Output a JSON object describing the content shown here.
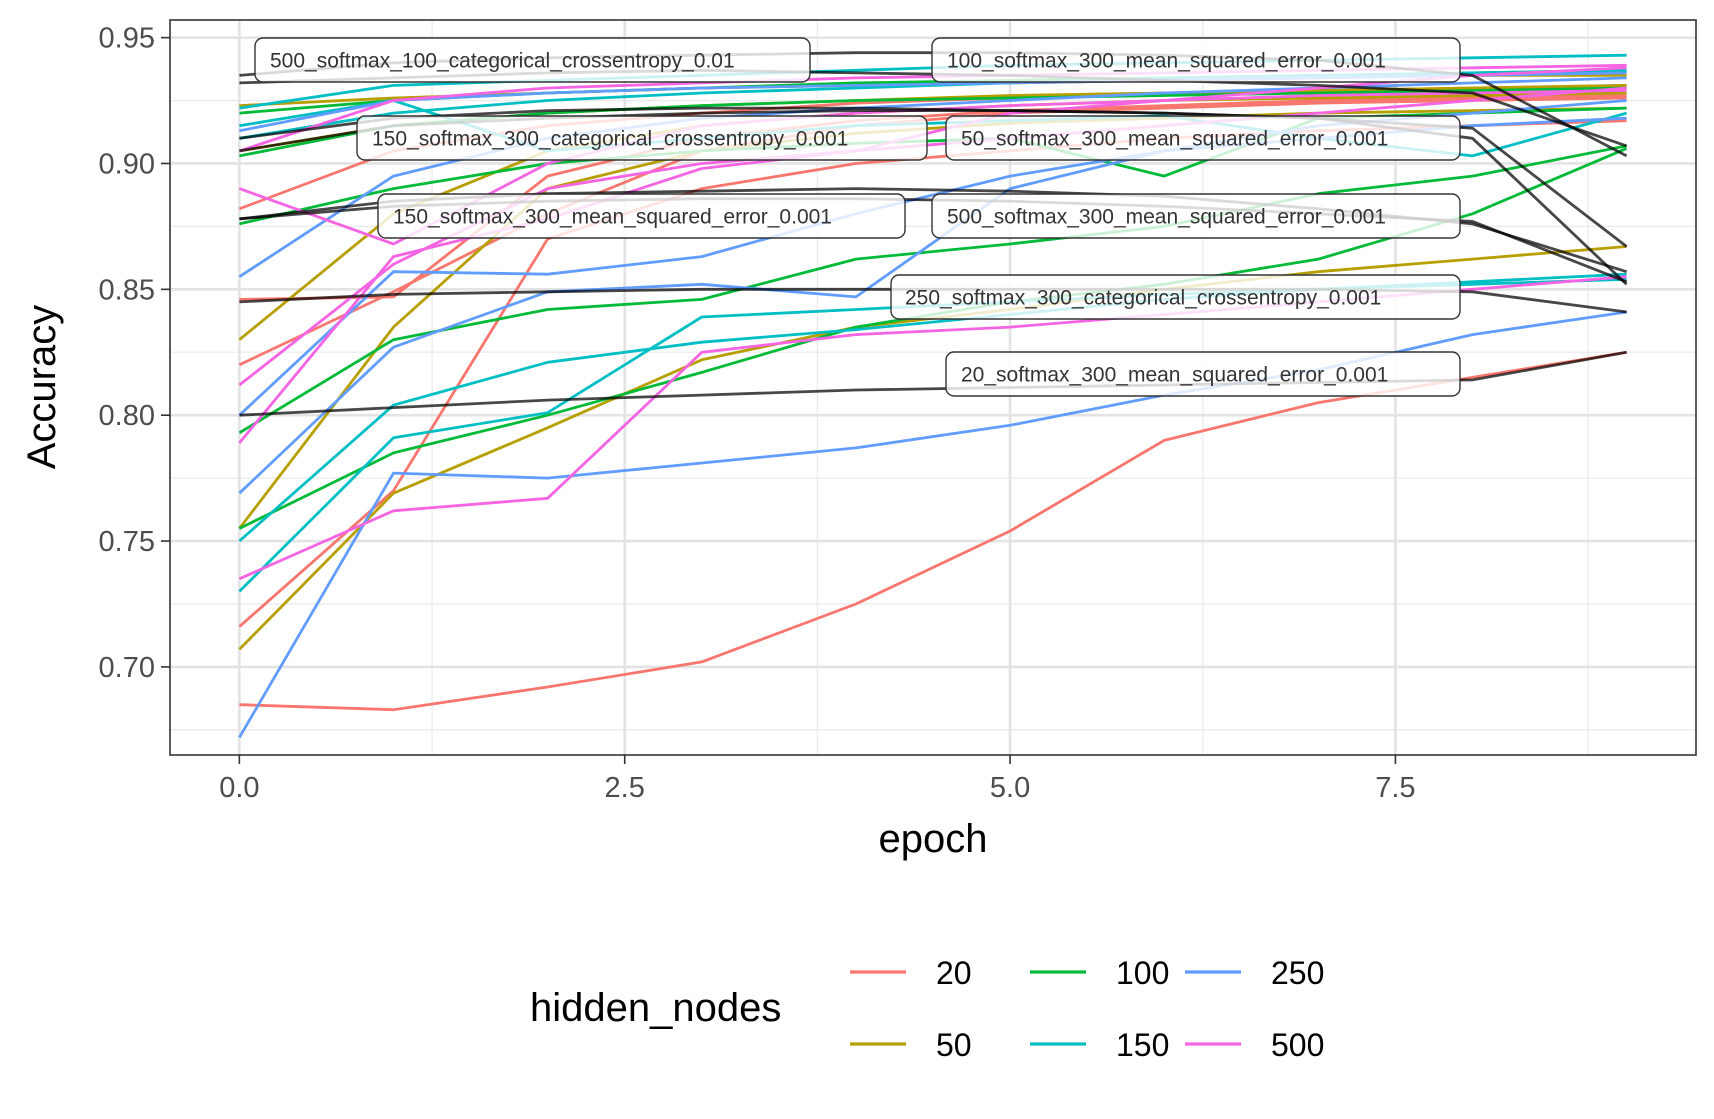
{
  "chart_data": {
    "type": "line",
    "xlabel": "epoch",
    "ylabel": "Accuracy",
    "xlim": [
      -0.45,
      9.45
    ],
    "ylim": [
      0.665,
      0.957
    ],
    "x_ticks": [
      "0.0",
      "2.5",
      "5.0",
      "7.5"
    ],
    "x_tick_values": [
      0,
      2.5,
      5,
      7.5
    ],
    "y_ticks": [
      "0.70",
      "0.75",
      "0.80",
      "0.85",
      "0.90",
      "0.95"
    ],
    "y_tick_values": [
      0.7,
      0.75,
      0.8,
      0.85,
      0.9,
      0.95
    ],
    "grid": true,
    "legend": {
      "title": "hidden_nodes",
      "position": "bottom",
      "entries": [
        {
          "label": "20",
          "color": "#F8766D"
        },
        {
          "label": "50",
          "color": "#B79F00"
        },
        {
          "label": "100",
          "color": "#00BA38"
        },
        {
          "label": "150",
          "color": "#00BFC4"
        },
        {
          "label": "250",
          "color": "#619CFF"
        },
        {
          "label": "500",
          "color": "#F564E3"
        }
      ]
    },
    "x": [
      0,
      1,
      2,
      3,
      4,
      5,
      6,
      7,
      8,
      9
    ],
    "series": [
      {
        "group": "20",
        "color": "#F8766D",
        "values": [
          0.685,
          0.683,
          0.692,
          0.702,
          0.725,
          0.754,
          0.79,
          0.805,
          0.815,
          0.825
        ]
      },
      {
        "group": "20",
        "color": "#F8766D",
        "values": [
          0.716,
          0.77,
          0.87,
          0.89,
          0.9,
          0.905,
          0.91,
          0.913,
          0.915,
          0.917
        ]
      },
      {
        "group": "20",
        "color": "#F8766D",
        "values": [
          0.82,
          0.849,
          0.88,
          0.905,
          0.915,
          0.92,
          0.922,
          0.924,
          0.925,
          0.926
        ]
      },
      {
        "group": "20",
        "color": "#F8766D",
        "values": [
          0.846,
          0.847,
          0.895,
          0.91,
          0.917,
          0.921,
          0.923,
          0.925,
          0.926,
          0.927
        ]
      },
      {
        "group": "20",
        "color": "#F8766D",
        "values": [
          0.882,
          0.905,
          0.915,
          0.92,
          0.924,
          0.926,
          0.928,
          0.929,
          0.93,
          0.931
        ]
      },
      {
        "group": "50",
        "color": "#B79F00",
        "values": [
          0.707,
          0.769,
          0.795,
          0.822,
          0.835,
          0.842,
          0.85,
          0.857,
          0.862,
          0.867
        ]
      },
      {
        "group": "50",
        "color": "#B79F00",
        "values": [
          0.755,
          0.835,
          0.89,
          0.905,
          0.912,
          0.916,
          0.918,
          0.92,
          0.921,
          0.922
        ]
      },
      {
        "group": "50",
        "color": "#B79F00",
        "values": [
          0.83,
          0.88,
          0.905,
          0.915,
          0.92,
          0.923,
          0.925,
          0.926,
          0.927,
          0.928
        ]
      },
      {
        "group": "50",
        "color": "#B79F00",
        "values": [
          0.905,
          0.915,
          0.92,
          0.923,
          0.925,
          0.927,
          0.928,
          0.929,
          0.93,
          0.931
        ]
      },
      {
        "group": "50",
        "color": "#B79F00",
        "values": [
          0.923,
          0.926,
          0.928,
          0.93,
          0.931,
          0.932,
          0.933,
          0.934,
          0.935,
          0.935
        ]
      },
      {
        "group": "100",
        "color": "#00BA38",
        "values": [
          0.793,
          0.83,
          0.842,
          0.846,
          0.862,
          0.868,
          0.875,
          0.888,
          0.895,
          0.907
        ]
      },
      {
        "group": "100",
        "color": "#00BA38",
        "values": [
          0.755,
          0.785,
          0.8,
          0.817,
          0.835,
          0.845,
          0.852,
          0.862,
          0.88,
          0.906
        ]
      },
      {
        "group": "100",
        "color": "#00BA38",
        "values": [
          0.876,
          0.89,
          0.9,
          0.905,
          0.908,
          0.91,
          0.895,
          0.918,
          0.92,
          0.922
        ]
      },
      {
        "group": "100",
        "color": "#00BA38",
        "values": [
          0.903,
          0.915,
          0.92,
          0.923,
          0.925,
          0.926,
          0.927,
          0.928,
          0.929,
          0.93
        ]
      },
      {
        "group": "100",
        "color": "#00BA38",
        "values": [
          0.92,
          0.925,
          0.928,
          0.93,
          0.932,
          0.933,
          0.934,
          0.935,
          0.936,
          0.937
        ]
      },
      {
        "group": "150",
        "color": "#00BFC4",
        "values": [
          0.75,
          0.804,
          0.821,
          0.829,
          0.834,
          0.84,
          0.846,
          0.85,
          0.853,
          0.856
        ]
      },
      {
        "group": "150",
        "color": "#00BFC4",
        "values": [
          0.73,
          0.791,
          0.801,
          0.839,
          0.842,
          0.845,
          0.848,
          0.85,
          0.852,
          0.854
        ]
      },
      {
        "group": "150",
        "color": "#00BFC4",
        "values": [
          0.91,
          0.92,
          0.925,
          0.928,
          0.93,
          0.932,
          0.934,
          0.935,
          0.936,
          0.937
        ]
      },
      {
        "group": "150",
        "color": "#00BFC4",
        "values": [
          0.922,
          0.931,
          0.933,
          0.935,
          0.937,
          0.939,
          0.94,
          0.941,
          0.942,
          0.943
        ]
      },
      {
        "group": "150",
        "color": "#00BFC4",
        "values": [
          0.915,
          0.925,
          0.905,
          0.91,
          0.915,
          0.917,
          0.919,
          0.91,
          0.903,
          0.92
        ]
      },
      {
        "group": "250",
        "color": "#619CFF",
        "values": [
          0.672,
          0.777,
          0.775,
          0.781,
          0.787,
          0.796,
          0.808,
          0.818,
          0.832,
          0.841
        ]
      },
      {
        "group": "250",
        "color": "#619CFF",
        "values": [
          0.769,
          0.827,
          0.849,
          0.852,
          0.847,
          0.89,
          0.905,
          0.915,
          0.92,
          0.925
        ]
      },
      {
        "group": "250",
        "color": "#619CFF",
        "values": [
          0.8,
          0.857,
          0.856,
          0.863,
          0.88,
          0.895,
          0.905,
          0.91,
          0.915,
          0.918
        ]
      },
      {
        "group": "250",
        "color": "#619CFF",
        "values": [
          0.913,
          0.925,
          0.928,
          0.93,
          0.931,
          0.932,
          0.933,
          0.934,
          0.935,
          0.936
        ]
      },
      {
        "group": "250",
        "color": "#619CFF",
        "values": [
          0.855,
          0.895,
          0.91,
          0.918,
          0.922,
          0.925,
          0.928,
          0.93,
          0.932,
          0.934
        ]
      },
      {
        "group": "500",
        "color": "#F564E3",
        "values": [
          0.735,
          0.762,
          0.767,
          0.825,
          0.832,
          0.835,
          0.84,
          0.845,
          0.85,
          0.855
        ]
      },
      {
        "group": "500",
        "color": "#F564E3",
        "values": [
          0.789,
          0.863,
          0.878,
          0.898,
          0.905,
          0.91,
          0.915,
          0.92,
          0.925,
          0.93
        ]
      },
      {
        "group": "500",
        "color": "#F564E3",
        "values": [
          0.89,
          0.868,
          0.9,
          0.915,
          0.92,
          0.923,
          0.925,
          0.927,
          0.928,
          0.929
        ]
      },
      {
        "group": "500",
        "color": "#F564E3",
        "values": [
          0.812,
          0.86,
          0.89,
          0.9,
          0.905,
          0.92,
          0.925,
          0.93,
          0.935,
          0.938
        ]
      },
      {
        "group": "500",
        "color": "#F564E3",
        "values": [
          0.905,
          0.925,
          0.93,
          0.932,
          0.934,
          0.935,
          0.936,
          0.937,
          0.938,
          0.939
        ]
      }
    ],
    "label_lines": [
      {
        "label": "500_softmax_100_categorical_crossentropy_0.01",
        "values": [
          0.932,
          0.934,
          0.936,
          0.937,
          0.936,
          0.935,
          0.933,
          0.931,
          0.928,
          0.907
        ]
      },
      {
        "label": "100_softmax_300_mean_squared_error_0.001",
        "values": [
          0.935,
          0.94,
          0.942,
          0.943,
          0.944,
          0.944,
          0.943,
          0.941,
          0.935,
          0.903
        ]
      },
      {
        "label": "150_softmax_300_categorical_crossentropy_0.001",
        "values": [
          0.905,
          0.915,
          0.918,
          0.92,
          0.921,
          0.921,
          0.92,
          0.918,
          0.91,
          0.852
        ]
      },
      {
        "label": "50_softmax_300_mean_squared_error_0.001",
        "values": [
          0.91,
          0.918,
          0.921,
          0.922,
          0.922,
          0.921,
          0.92,
          0.918,
          0.914,
          0.867
        ]
      },
      {
        "label": "150_softmax_300_mean_squared_error_0.001",
        "values": [
          0.878,
          0.885,
          0.888,
          0.889,
          0.89,
          0.889,
          0.887,
          0.882,
          0.876,
          0.857
        ]
      },
      {
        "label": "500_softmax_300_mean_squared_error_0.001",
        "values": [
          0.878,
          0.883,
          0.885,
          0.886,
          0.886,
          0.885,
          0.883,
          0.88,
          0.877,
          0.853
        ]
      },
      {
        "label": "250_softmax_300_categorical_crossentropy_0.001",
        "values": [
          0.845,
          0.848,
          0.849,
          0.85,
          0.85,
          0.85,
          0.85,
          0.85,
          0.849,
          0.841
        ]
      },
      {
        "label": "20_softmax_300_mean_squared_error_0.001",
        "values": [
          0.8,
          0.803,
          0.806,
          0.808,
          0.81,
          0.811,
          0.812,
          0.813,
          0.814,
          0.825
        ]
      }
    ]
  }
}
